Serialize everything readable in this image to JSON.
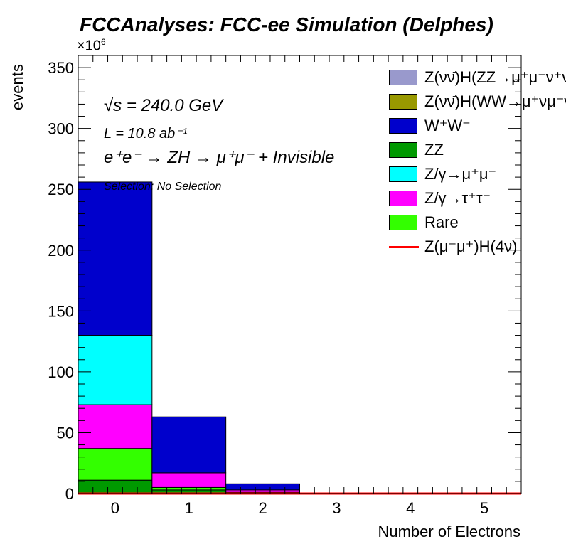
{
  "chart_data": {
    "type": "bar",
    "stacked": true,
    "title": "FCCAnalyses: FCC-ee Simulation (Delphes)",
    "xlabel": "Number of Electrons",
    "ylabel": "events",
    "y_scale_label": "×10^6",
    "y_scale_factor": 1000000,
    "xlim": [
      -0.5,
      5.5
    ],
    "ylim": [
      0,
      360
    ],
    "x_ticks": [
      0,
      1,
      2,
      3,
      4,
      5
    ],
    "y_ticks": [
      0,
      50,
      100,
      150,
      200,
      250,
      300,
      350
    ],
    "categories": [
      0,
      1,
      2,
      3,
      4,
      5
    ],
    "series": [
      {
        "name": "Z(νν̄)H(ZZ→μ⁺μ⁻ν⁺ν⁻)",
        "color": "#9999cc",
        "values": [
          0,
          0,
          0,
          0,
          0,
          0
        ]
      },
      {
        "name": "Z(νν̄)H(WW→μ⁺νμ⁻ν)",
        "color": "#999900",
        "values": [
          0,
          0,
          0,
          0,
          0,
          0
        ]
      },
      {
        "name": "ZZ",
        "color": "#009900",
        "values": [
          11,
          3,
          1,
          0,
          0,
          0
        ]
      },
      {
        "name": "Rare",
        "color": "#33ff00",
        "values": [
          26,
          2,
          0,
          0,
          0,
          0
        ]
      },
      {
        "name": "Z/γ→τ⁺τ⁻",
        "color": "#ff00ff",
        "values": [
          36,
          12,
          2,
          0,
          0,
          0
        ]
      },
      {
        "name": "Z/γ→μ⁺μ⁻",
        "color": "#00ffff",
        "values": [
          57,
          0,
          0,
          0,
          0,
          0
        ]
      },
      {
        "name": "W⁺W⁻",
        "color": "#0000cc",
        "values": [
          126,
          46,
          5,
          0,
          0,
          0
        ]
      }
    ],
    "overlay": {
      "name": "Z(μ⁻μ⁺)H(4ν)",
      "color": "#ff0000",
      "values": [
        0,
        0,
        0,
        0,
        0,
        0
      ]
    },
    "annotations": {
      "sqrt_s": "√s = 240.0 GeV",
      "lumi": "L = 10.8 ab⁻¹",
      "process": "e⁺e⁻ → ZH → μ⁺μ⁻ + Invisible",
      "selection": "Selection: No Selection"
    },
    "legend": {
      "position": "top-right",
      "entries": [
        {
          "label": "Z(νν̄)H(ZZ→μ⁺μ⁻ν⁺ν⁻)",
          "color": "#9999cc",
          "style": "fill"
        },
        {
          "label": "Z(νν̄)H(WW→μ⁺νμ⁻ν)",
          "color": "#999900",
          "style": "fill"
        },
        {
          "label": "W⁺W⁻",
          "color": "#0000cc",
          "style": "fill"
        },
        {
          "label": "ZZ",
          "color": "#009900",
          "style": "fill"
        },
        {
          "label": "Z/γ→μ⁺μ⁻",
          "color": "#00ffff",
          "style": "fill"
        },
        {
          "label": "Z/γ→τ⁺τ⁻",
          "color": "#ff00ff",
          "style": "fill"
        },
        {
          "label": "Rare",
          "color": "#33ff00",
          "style": "fill"
        },
        {
          "label": "Z(μ⁻μ⁺)H(4ν)",
          "color": "#ff0000",
          "style": "line"
        }
      ]
    },
    "grid": false
  }
}
